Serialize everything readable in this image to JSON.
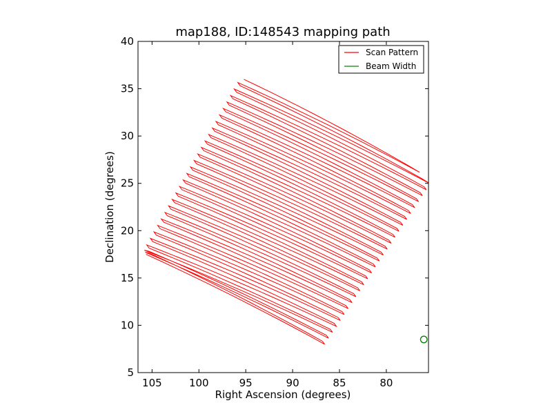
{
  "chart_data": {
    "type": "line",
    "title": "map188, ID:148543 mapping path",
    "xlabel": "Right Ascension (degrees)",
    "ylabel": "Declination (degrees)",
    "xlim": [
      106.5,
      75.5
    ],
    "ylim": [
      5,
      40
    ],
    "xticks": [
      105,
      100,
      95,
      90,
      85,
      80
    ],
    "yticks": [
      5,
      10,
      15,
      20,
      25,
      30,
      35,
      40
    ],
    "grid": false,
    "legend_position": "top-right",
    "series": [
      {
        "name": "Scan Pattern",
        "color": "#ff0000",
        "style": "raster",
        "num_scan_lines": 58,
        "corners": {
          "top_left": [
            95.5,
            36.0
          ],
          "top_right": [
            77.3,
            26.8
          ],
          "right": [
            75.5,
            25.0
          ],
          "bottom_right": [
            86.8,
            8.0
          ],
          "bottom_left": [
            105.5,
            17.5
          ],
          "left": [
            105.7,
            18.0
          ]
        }
      },
      {
        "name": "Beam Width",
        "color": "#008000",
        "style": "circle",
        "center": [
          76.0,
          8.5
        ],
        "radius_deg": 0.35
      }
    ]
  }
}
